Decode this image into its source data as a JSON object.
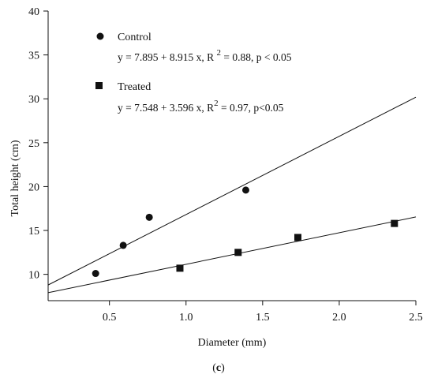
{
  "chart_data": {
    "type": "scatter",
    "panel_label": "c",
    "xlabel": "Diameter (mm)",
    "ylabel": "Total height (cm)",
    "xlim": [
      0.1,
      2.5
    ],
    "ylim": [
      7,
      40
    ],
    "x_ticks": [
      0.5,
      1.0,
      1.5,
      2.0,
      2.5
    ],
    "x_tick_labels": [
      "0.5",
      "1.0",
      "1.5",
      "2.0",
      "2.5"
    ],
    "y_ticks": [
      10,
      15,
      20,
      25,
      30,
      35,
      40
    ],
    "y_tick_labels": [
      "10",
      "15",
      "20",
      "25",
      "30",
      "35",
      "40"
    ],
    "grid": false,
    "legend_position": "top-left",
    "series": [
      {
        "name": "Control",
        "marker": "circle",
        "equation": "y = 7.895 + 8.915 x, R 2 = 0.88, p < 0.05",
        "intercept": 7.895,
        "slope": 8.915,
        "x": [
          0.41,
          0.59,
          0.76,
          1.39
        ],
        "y": [
          10.1,
          13.3,
          16.5,
          19.6
        ]
      },
      {
        "name": "Treated",
        "marker": "square",
        "equation": "y = 7.548 + 3.596 x, R2 = 0.97, p<0.05",
        "intercept": 7.548,
        "slope": 3.596,
        "x": [
          0.96,
          1.34,
          1.73,
          2.36
        ],
        "y": [
          10.7,
          12.5,
          14.2,
          15.8
        ]
      }
    ]
  }
}
